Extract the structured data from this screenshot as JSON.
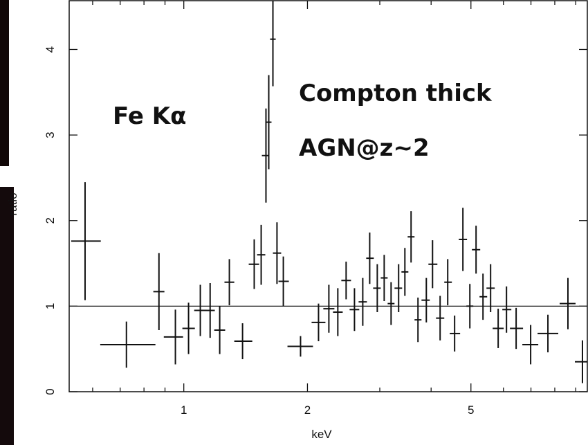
{
  "chart_data": {
    "type": "errorbar",
    "annotations": [
      "Fe Kα",
      "Compton thick",
      "AGN@z~2"
    ],
    "xlabel": "keV",
    "ylabel": "ratio",
    "xlim": [
      0.526,
      9.6
    ],
    "ylim": [
      0,
      4.57
    ],
    "xscale": "log",
    "xticks": [
      1,
      2,
      5
    ],
    "xminor": [
      0.6,
      0.7,
      0.8,
      0.9,
      3,
      4,
      6,
      7,
      8,
      9
    ],
    "yticks": [
      0,
      1,
      2,
      3,
      4
    ],
    "hline": 1,
    "color": "#111111",
    "series": [
      {
        "x": [
          0.575,
          0.725,
          0.87,
          0.954,
          1.027,
          1.097,
          1.159,
          1.223,
          1.291,
          1.39,
          1.484,
          1.543,
          1.585,
          1.61,
          1.648,
          1.686,
          1.747,
          1.924,
          2.128,
          2.255,
          2.371,
          2.484,
          2.603,
          2.727,
          2.835,
          2.958,
          3.075,
          3.196,
          3.334,
          3.453,
          3.575,
          3.716,
          3.894,
          4.032,
          4.207,
          4.39,
          4.563,
          4.78,
          4.97,
          5.146,
          5.35,
          5.583,
          5.825,
          6.103,
          6.442,
          6.988,
          7.698,
          8.612,
          9.342
        ],
        "x_low": [
          0.532,
          0.626,
          0.843,
          0.894,
          0.992,
          1.06,
          1.123,
          1.186,
          1.256,
          1.327,
          1.439,
          1.508,
          1.549,
          1.585,
          1.622,
          1.648,
          1.7,
          1.788,
          2.047,
          2.186,
          2.308,
          2.418,
          2.533,
          2.664,
          2.78,
          2.89,
          3.016,
          3.135,
          3.258,
          3.387,
          3.507,
          3.645,
          3.79,
          3.94,
          4.111,
          4.306,
          4.441,
          4.671,
          4.874,
          5.028,
          5.247,
          5.455,
          5.648,
          5.962,
          6.222,
          6.67,
          7.264,
          8.222,
          8.953
        ],
        "x_high": [
          0.628,
          0.853,
          0.897,
          0.996,
          1.064,
          1.136,
          1.19,
          1.261,
          1.327,
          1.468,
          1.525,
          1.579,
          1.616,
          1.635,
          1.674,
          1.726,
          1.802,
          2.063,
          2.212,
          2.326,
          2.437,
          2.553,
          2.674,
          2.791,
          2.901,
          3.016,
          3.135,
          3.258,
          3.4,
          3.521,
          3.645,
          3.79,
          3.97,
          4.143,
          4.306,
          4.493,
          4.706,
          4.892,
          5.067,
          5.267,
          5.476,
          5.714,
          6.008,
          6.271,
          6.696,
          7.293,
          8.158,
          8.988,
          9.6
        ],
        "y": [
          1.76,
          0.55,
          1.17,
          0.64,
          0.74,
          0.95,
          0.95,
          0.72,
          1.28,
          0.59,
          1.49,
          1.6,
          2.76,
          3.15,
          4.12,
          1.62,
          1.29,
          0.53,
          0.81,
          0.97,
          0.93,
          1.3,
          0.96,
          1.05,
          1.56,
          1.21,
          1.33,
          1.03,
          1.21,
          1.4,
          1.81,
          0.84,
          1.07,
          1.49,
          0.86,
          1.28,
          0.68,
          1.78,
          1.0,
          1.66,
          1.11,
          1.21,
          0.74,
          0.96,
          0.74,
          0.55,
          0.68,
          1.03,
          0.35
        ],
        "yerr": [
          0.69,
          0.27,
          0.45,
          0.32,
          0.3,
          0.3,
          0.32,
          0.28,
          0.27,
          0.21,
          0.29,
          0.35,
          0.55,
          0.55,
          0.55,
          0.36,
          0.29,
          0.12,
          0.22,
          0.28,
          0.28,
          0.22,
          0.25,
          0.28,
          0.3,
          0.28,
          0.27,
          0.25,
          0.28,
          0.28,
          0.3,
          0.26,
          0.26,
          0.28,
          0.26,
          0.27,
          0.21,
          0.37,
          0.26,
          0.28,
          0.27,
          0.28,
          0.23,
          0.27,
          0.24,
          0.23,
          0.22,
          0.3,
          0.25
        ]
      }
    ]
  }
}
